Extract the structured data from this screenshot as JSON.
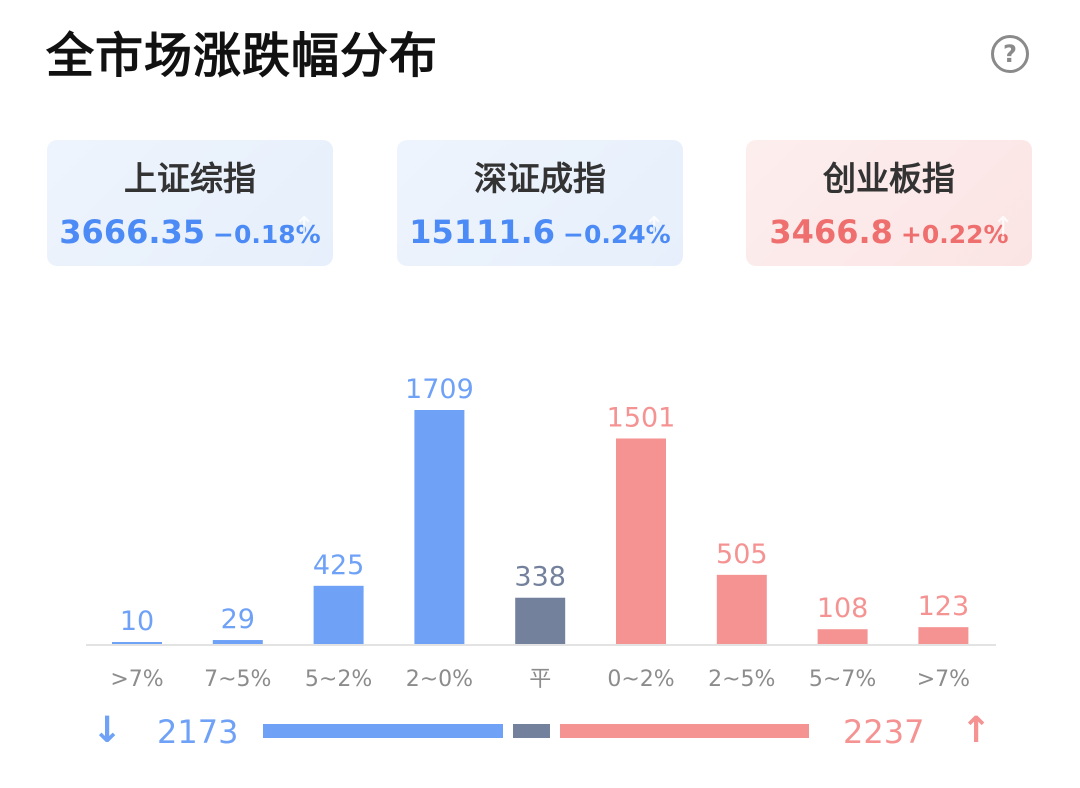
{
  "title": "全市场涨跌幅分布",
  "help_icon": "question-circle-icon",
  "indices": [
    {
      "name": "上证综指",
      "price": "3666.35",
      "change": "−0.18%",
      "trend": "down"
    },
    {
      "name": "深证成指",
      "price": "15111.6",
      "change": "−0.24%",
      "trend": "down"
    },
    {
      "name": "创业板指",
      "price": "3466.8",
      "change": "+0.22%",
      "trend": "up"
    }
  ],
  "colors": {
    "down": "#6fa2f7",
    "flat": "#73819d",
    "up": "#f59393",
    "down_text": "#4c8bf5",
    "up_text": "#ef6f6f",
    "axis_label": "#8c8c8c"
  },
  "chart_data": {
    "type": "bar",
    "categories": [
      ">7%",
      "7~5%",
      "5~2%",
      "2~0%",
      "平",
      "0~2%",
      "2~5%",
      "5~7%",
      ">7%"
    ],
    "values": [
      10,
      29,
      425,
      1709,
      338,
      1501,
      505,
      108,
      123
    ],
    "groups": [
      "down",
      "down",
      "down",
      "down",
      "flat",
      "up",
      "up",
      "up",
      "up"
    ],
    "ylim": [
      0,
      1709
    ]
  },
  "summary": {
    "down_count": "2173",
    "up_count": "2237",
    "down_icon": "arrow-down-icon",
    "up_icon": "arrow-up-icon"
  }
}
